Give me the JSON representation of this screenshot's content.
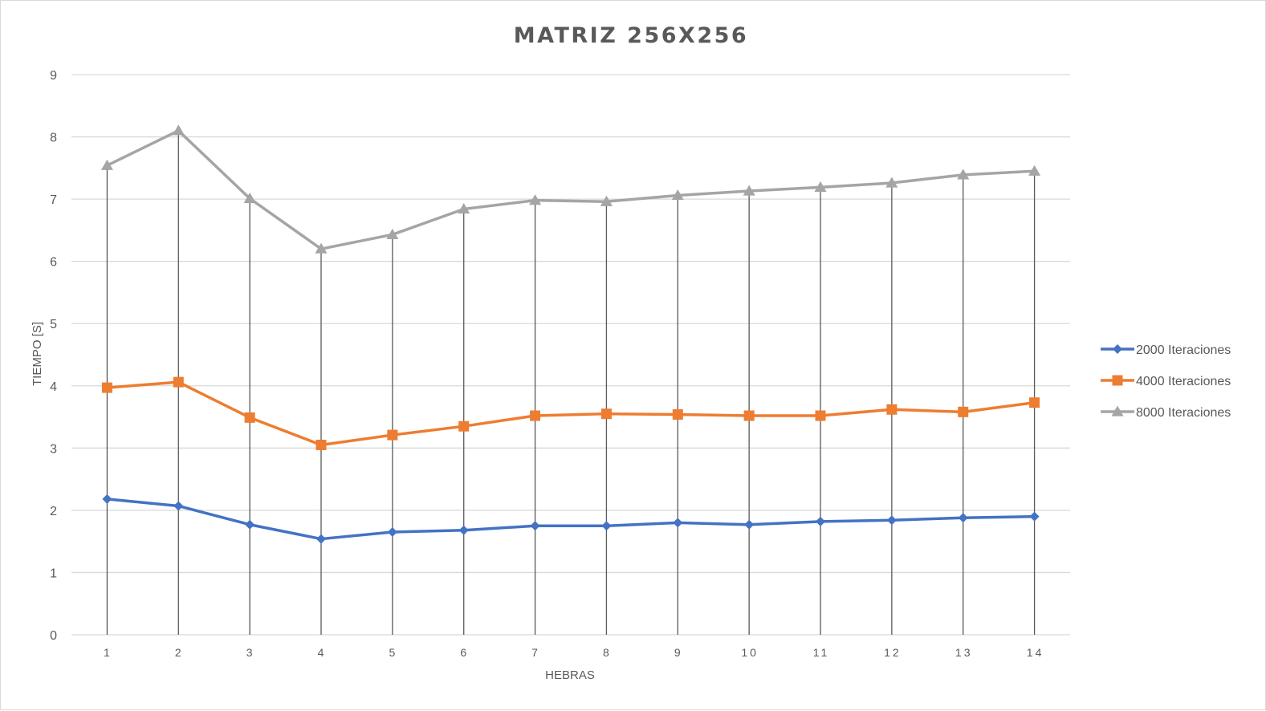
{
  "chart_data": {
    "type": "line",
    "title": "MATRIZ 256X256",
    "xlabel": "HEBRAS",
    "ylabel": "TIEMPO [S]",
    "categories": [
      "1",
      "2",
      "3",
      "4",
      "5",
      "6",
      "7",
      "8",
      "9",
      "10",
      "11",
      "12",
      "13",
      "14"
    ],
    "ylim": [
      0,
      9
    ],
    "yticks": [
      "0",
      "1",
      "2",
      "3",
      "4",
      "5",
      "6",
      "7",
      "8",
      "9"
    ],
    "grid": true,
    "drop_lines": true,
    "legend_position": "right",
    "series": [
      {
        "name": "2000 Iteraciones",
        "color": "#4472c4",
        "marker": "diamond",
        "values": [
          2.18,
          2.07,
          1.77,
          1.54,
          1.65,
          1.68,
          1.75,
          1.75,
          1.8,
          1.77,
          1.82,
          1.84,
          1.88,
          1.9
        ]
      },
      {
        "name": "4000 Iteraciones",
        "color": "#ed7d31",
        "marker": "square",
        "values": [
          3.97,
          4.06,
          3.49,
          3.05,
          3.21,
          3.35,
          3.52,
          3.55,
          3.54,
          3.52,
          3.52,
          3.62,
          3.58,
          3.73
        ]
      },
      {
        "name": "8000 Iteraciones",
        "color": "#a5a5a5",
        "marker": "triangle",
        "values": [
          7.54,
          8.1,
          7.01,
          6.2,
          6.43,
          6.84,
          6.98,
          6.96,
          7.06,
          7.13,
          7.19,
          7.26,
          7.39,
          7.45
        ]
      }
    ]
  }
}
